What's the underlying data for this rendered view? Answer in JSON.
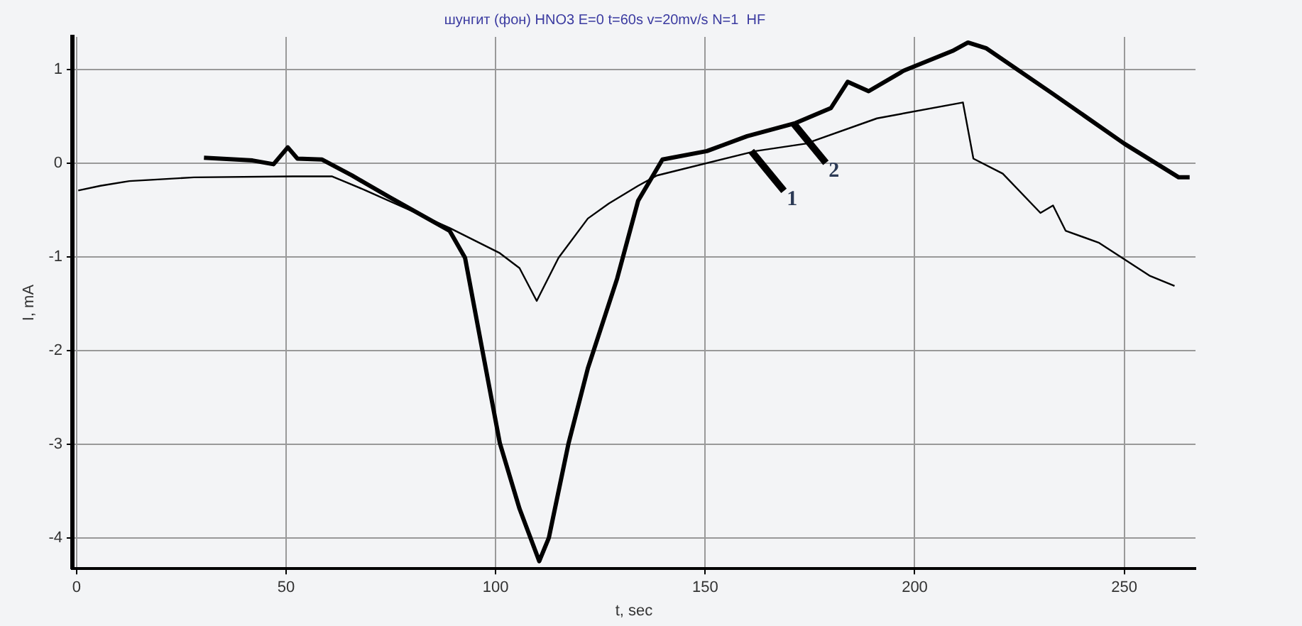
{
  "chart_data": {
    "type": "line",
    "title": "шунгит (фон) HNO3 E=0 t=60s v=20mv/s N=1  HF",
    "xlabel": "t, sec",
    "ylabel": "I, mA",
    "xlim": [
      -1,
      267
    ],
    "ylim": [
      -4.33,
      1.35
    ],
    "xticks": [
      0,
      50,
      100,
      150,
      200,
      250
    ],
    "yticks": [
      -4,
      -3,
      -2,
      -1,
      0,
      1
    ],
    "grid": true,
    "legend": false,
    "marker": "none",
    "series": [
      {
        "color": "#000000",
        "x": [
          0.4,
          5.7,
          12.6,
          28,
          51.6,
          61,
          69,
          81,
          89,
          101,
          105.7,
          109.8,
          115,
          122,
          127,
          134,
          138.5,
          162,
          174,
          191,
          211.5,
          214,
          221,
          230,
          233,
          236,
          244,
          256,
          262
        ],
        "values": [
          -0.29,
          -0.24,
          -0.19,
          -0.15,
          -0.14,
          -0.14,
          -0.29,
          -0.53,
          -0.69,
          -0.96,
          -1.12,
          -1.47,
          -1.01,
          -0.59,
          -0.43,
          -0.24,
          -0.13,
          0.13,
          0.21,
          0.48,
          0.65,
          0.05,
          -0.11,
          -0.53,
          -0.45,
          -0.72,
          -0.85,
          -1.2,
          -1.31
        ]
      },
      {
        "color": "#000000",
        "x": [
          30.4,
          42,
          47,
          50.4,
          52.7,
          58.6,
          65.7,
          75,
          89,
          92.7,
          96.3,
          101,
          105.7,
          110.4,
          112.7,
          117.4,
          122,
          129,
          134,
          139.8,
          150.4,
          160,
          171.6,
          180,
          184,
          189,
          197.4,
          209,
          212.7,
          217,
          232.7,
          250,
          263,
          265.6
        ],
        "values": [
          0.06,
          0.03,
          -0.01,
          0.17,
          0.05,
          0.04,
          -0.13,
          -0.37,
          -0.72,
          -1.01,
          -1.87,
          -2.99,
          -3.69,
          -4.25,
          -4.0,
          -2.99,
          -2.19,
          -1.23,
          -0.4,
          0.04,
          0.13,
          0.29,
          0.43,
          0.59,
          0.87,
          0.77,
          0.99,
          1.2,
          1.29,
          1.23,
          0.75,
          0.21,
          -0.15,
          -0.15
        ]
      }
    ],
    "annotations": [
      {
        "text": "1",
        "x": 161,
        "y": 0.13
      },
      {
        "text": "2",
        "x": 171,
        "y": 0.43
      }
    ]
  }
}
